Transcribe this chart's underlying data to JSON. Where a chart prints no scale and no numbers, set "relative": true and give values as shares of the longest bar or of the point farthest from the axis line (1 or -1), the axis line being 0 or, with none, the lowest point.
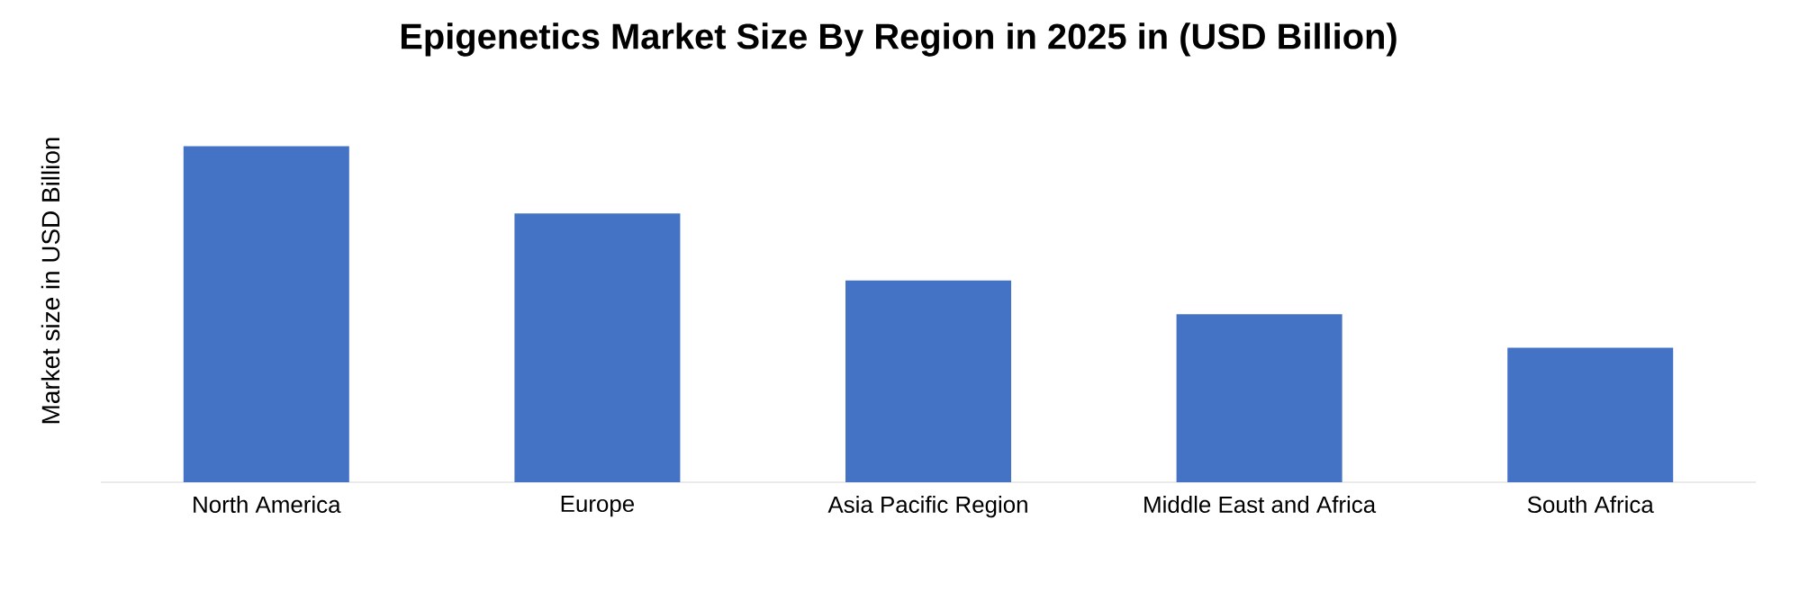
{
  "chart_data": {
    "type": "bar",
    "title": "Epigenetics Market Size By Region in 2025 in (USD Billion)",
    "ylabel": "Market size in USD Billion",
    "categories": [
      "North America",
      "Europe",
      "Asia Pacific Region",
      "Middle East and Africa",
      "South Africa"
    ],
    "values": [
      1,
      0.8,
      0.6,
      0.5,
      0.4
    ],
    "color": "#4472c4",
    "relative": true
  }
}
